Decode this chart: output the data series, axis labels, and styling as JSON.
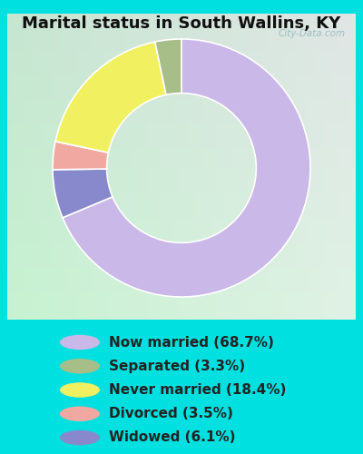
{
  "title": "Marital status in South Wallins, KY",
  "slices": [
    68.7,
    6.1,
    3.5,
    18.4,
    3.3
  ],
  "slice_order_labels": [
    "Now married",
    "Widowed",
    "Divorced",
    "Never married",
    "Separated"
  ],
  "labels": [
    "Now married (68.7%)",
    "Separated (3.3%)",
    "Never married (18.4%)",
    "Divorced (3.5%)",
    "Widowed (6.1%)"
  ],
  "legend_colors": [
    "#c9b8e8",
    "#a8be88",
    "#f0f060",
    "#f0a8a0",
    "#8888cc"
  ],
  "slice_colors": [
    "#c9b8e8",
    "#8888cc",
    "#f0a8a0",
    "#f0f060",
    "#a8be88"
  ],
  "bg_outer": "#00e0e0",
  "bg_inner_top_left": "#c8e8d8",
  "bg_inner_bottom_right": "#d8f0e8",
  "watermark": "City-Data.com",
  "title_fontsize": 13,
  "legend_fontsize": 11,
  "donut_width": 0.42,
  "start_angle": 90
}
